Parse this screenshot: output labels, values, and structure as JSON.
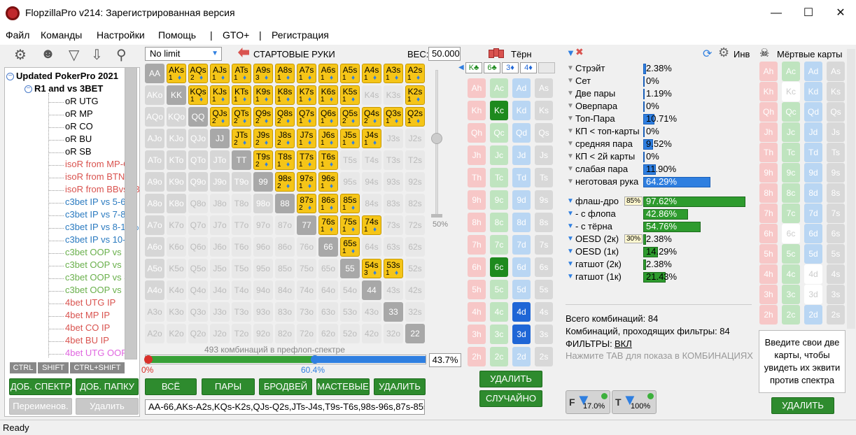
{
  "window": {
    "title": "FlopzillaPro v214: Зарегистрированная версия"
  },
  "menu": [
    "Файл",
    "Команды",
    "Настройки",
    "Помощь",
    "|",
    "GTO+",
    "|",
    "Регистрация"
  ],
  "tree": [
    {
      "text": "Updated PokerPro 2021",
      "bold": true,
      "color": "#000"
    },
    {
      "text": "R1 and vs 3BET",
      "bold": true,
      "color": "#000"
    },
    {
      "text": "oR UTG",
      "color": "#000"
    },
    {
      "text": "oR MP",
      "color": "#000"
    },
    {
      "text": "oR CO",
      "color": "#000"
    },
    {
      "text": "oR BU",
      "color": "#000"
    },
    {
      "text": "oR SB",
      "color": "#000"
    },
    {
      "text": "isoR from MP-CO",
      "color": "#d9534f"
    },
    {
      "text": "isoR from BTN-B",
      "color": "#d9534f"
    },
    {
      "text": "isoR from BBvsSB",
      "color": "#d9534f"
    },
    {
      "text": "c3bet IP vs 5-6%",
      "color": "#2a7ac0"
    },
    {
      "text": "c3bet IP vs 7-8%",
      "color": "#2a7ac0"
    },
    {
      "text": "c3bet IP vs 8-10%",
      "color": "#2a7ac0"
    },
    {
      "text": "c3bet IP vs 10-15",
      "color": "#2a7ac0"
    },
    {
      "text": "c3bet OOP vs 5-6",
      "color": "#6ab04c"
    },
    {
      "text": "c3bet OOP vs 7-8",
      "color": "#6ab04c"
    },
    {
      "text": "c3bet OOP vs 8-1",
      "color": "#6ab04c"
    },
    {
      "text": "c3bet OOP vs 12",
      "color": "#6ab04c"
    },
    {
      "text": "4bet UTG IP",
      "color": "#d9534f"
    },
    {
      "text": "4bet MP IP",
      "color": "#d9534f"
    },
    {
      "text": "4bet CO IP",
      "color": "#d9534f"
    },
    {
      "text": "4bet BU IP",
      "color": "#d9534f"
    },
    {
      "text": "4bet UTG OOP",
      "color": "#e066e0"
    }
  ],
  "modifiers": [
    "CTRL",
    "SHIFT",
    "CTRL+SHIFT"
  ],
  "left_buttons": {
    "add_range": "ДОБ. СПЕКТР",
    "add_folder": "ДОБ. ПАПКУ",
    "rename": "Переименов.",
    "delete": "Удалить"
  },
  "range": {
    "limit": "No limit",
    "starting_hands_label": "СТАРТОВЫЕ РУКИ",
    "weight_label": "ВЕС:",
    "weight_value": "50.000",
    "slider_pct": "50%",
    "combos_text": "493 комбинаций в префлоп-спектре",
    "bar_min": "0%",
    "bar_mid": "60.4%",
    "bar_pct": "43.7%",
    "bar_fill": 0.437,
    "range_string": "AA-66,AKs-A2s,KQs-K2s,QJs-Q2s,JTs-J4s,T9s-T6s,98s-96s,87s-85s,76s-74s,65s,54s,53s",
    "buttons": [
      "ВСЁ",
      "ПАРЫ",
      "БРОДВЕЙ",
      "МАСТЕВЫЕ",
      "УДАЛИТЬ"
    ]
  },
  "grid": {
    "ranks": [
      "A",
      "K",
      "Q",
      "J",
      "T",
      "9",
      "8",
      "7",
      "6",
      "5",
      "4",
      "3",
      "2"
    ],
    "selected": [
      "AKs",
      "AQs",
      "AJs",
      "ATs",
      "A9s",
      "A8s",
      "A7s",
      "A6s",
      "A5s",
      "A4s",
      "A3s",
      "A2s",
      "KQs",
      "KJs",
      "KTs",
      "K9s",
      "K8s",
      "K7s",
      "K6s",
      "K5s",
      "K2s",
      "QJs",
      "QTs",
      "Q9s",
      "Q8s",
      "Q7s",
      "Q6s",
      "Q5s",
      "Q4s",
      "Q3s",
      "Q2s",
      "JTs",
      "J9s",
      "J8s",
      "J7s",
      "J6s",
      "J5s",
      "J4s",
      "T9s",
      "T8s",
      "T7s",
      "T6s",
      "98s",
      "97s",
      "96s",
      "87s",
      "86s",
      "85s",
      "76s",
      "75s",
      "74s",
      "65s",
      "54s",
      "53s"
    ],
    "sub": {
      "AKs": "1",
      "AQs": "2",
      "AJs": "1",
      "ATs": "1",
      "A9s": "3",
      "A8s": "1",
      "A7s": "1",
      "A6s": "1",
      "A5s": "1",
      "A4s": "1",
      "A3s": "1",
      "A2s": "1",
      "KQs": "1",
      "KJs": "1",
      "KTs": "1",
      "K9s": "1",
      "K8s": "1",
      "K7s": "1",
      "K6s": "1",
      "K5s": "1",
      "K2s": "1",
      "QJs": "2",
      "QTs": "2",
      "Q9s": "2",
      "Q8s": "2",
      "Q7s": "1",
      "Q6s": "1",
      "Q5s": "2",
      "Q4s": "2",
      "Q3s": "1",
      "Q2s": "1",
      "JTs": "2",
      "J9s": "2",
      "J8s": "2",
      "J7s": "1",
      "J6s": "1",
      "J5s": "1",
      "J4s": "1",
      "T9s": "2",
      "T8s": "1",
      "T7s": "1",
      "T6s": "1",
      "98s": "2",
      "97s": "1",
      "96s": "1",
      "87s": "2",
      "86s": "1",
      "85s": "1",
      "76s": "1",
      "75s": "1",
      "74s": "1",
      "65s": "1",
      "54s": "3",
      "53s": "1"
    },
    "dark_pairs": [
      "AA",
      "KK",
      "QQ",
      "JJ",
      "TT",
      "99",
      "88",
      "77",
      "66",
      "55",
      "44",
      "33",
      "22"
    ],
    "dark_off": [
      "AKo",
      "AQo",
      "KQo",
      "AJo",
      "KJo",
      "QJo",
      "ATo",
      "KTo",
      "QTo",
      "JTo",
      "A9o",
      "K9o",
      "Q9o",
      "J9o",
      "T9o",
      "A8o",
      "K8o",
      "98o",
      "A7o",
      "A6o",
      "A5o",
      "A4o"
    ]
  },
  "turn": {
    "title": "Тёрн",
    "board": [
      "K♣",
      "6♣",
      "3♦",
      "4♦"
    ],
    "ranks": [
      "A",
      "K",
      "Q",
      "J",
      "T",
      "9",
      "8",
      "7",
      "6",
      "5",
      "4",
      "3",
      "2"
    ],
    "suits": [
      "h",
      "c",
      "d",
      "s"
    ],
    "selected": [
      "Kc",
      "6c",
      "4d",
      "3d"
    ],
    "buttons": {
      "delete": "УДАЛИТЬ",
      "random": "СЛУЧАЙНО"
    }
  },
  "stats": {
    "made": [
      {
        "label": "Стрэйт",
        "value": "2.38%",
        "pct": 2.38
      },
      {
        "label": "Сет",
        "value": "0%",
        "pct": 0
      },
      {
        "label": "Две пары",
        "value": "1.19%",
        "pct": 1.19
      },
      {
        "label": "Оверпара",
        "value": "0%",
        "pct": 0
      },
      {
        "label": "Топ-Пара",
        "value": "10.71%",
        "pct": 10.71
      },
      {
        "label": "КП < топ-карты",
        "value": "0%",
        "pct": 0
      },
      {
        "label": "средняя пара",
        "value": "9.52%",
        "pct": 9.52
      },
      {
        "label": "КП < 2й карты",
        "value": "0%",
        "pct": 0
      },
      {
        "label": "слабая пара",
        "value": "11.90%",
        "pct": 11.9
      },
      {
        "label": "неготовая рука",
        "value": "64.29%",
        "pct": 64.29
      }
    ],
    "draws": [
      {
        "label": "флаш-дро",
        "value": "97.62%",
        "pct": 97.62,
        "badge": "85%"
      },
      {
        "label": "- с флопа",
        "value": "42.86%",
        "pct": 42.86
      },
      {
        "label": "- с тёрна",
        "value": "54.76%",
        "pct": 54.76
      },
      {
        "label": "OESD (2к)",
        "value": "2.38%",
        "pct": 2.38,
        "badge": "30%"
      },
      {
        "label": "OESD (1к)",
        "value": "14.29%",
        "pct": 14.29
      },
      {
        "label": "гатшот (2к)",
        "value": "2.38%",
        "pct": 2.38
      },
      {
        "label": "гатшот (1к)",
        "value": "21.43%",
        "pct": 21.43
      }
    ],
    "inv_label": "Инв",
    "total_combos": "Всего комбинаций: 84",
    "passing_combos": "Комбинаций, проходящих фильтры: 84",
    "filters_label": "ФИЛЬТРЫ:",
    "filters_value": "ВКЛ",
    "tab_hint": "Нажмите TAB для показа в КОМБИНАЦИЯХ",
    "f_pct": "17.0%",
    "t_pct": "100%"
  },
  "dead": {
    "title": "Мёртвые карты",
    "hint": "Введите свои две карты, чтобы увидеть их эквити против спектра",
    "delete": "УДАЛИТЬ",
    "white": [
      "Kc",
      "6c",
      "4d",
      "3d"
    ]
  },
  "status": "Ready"
}
